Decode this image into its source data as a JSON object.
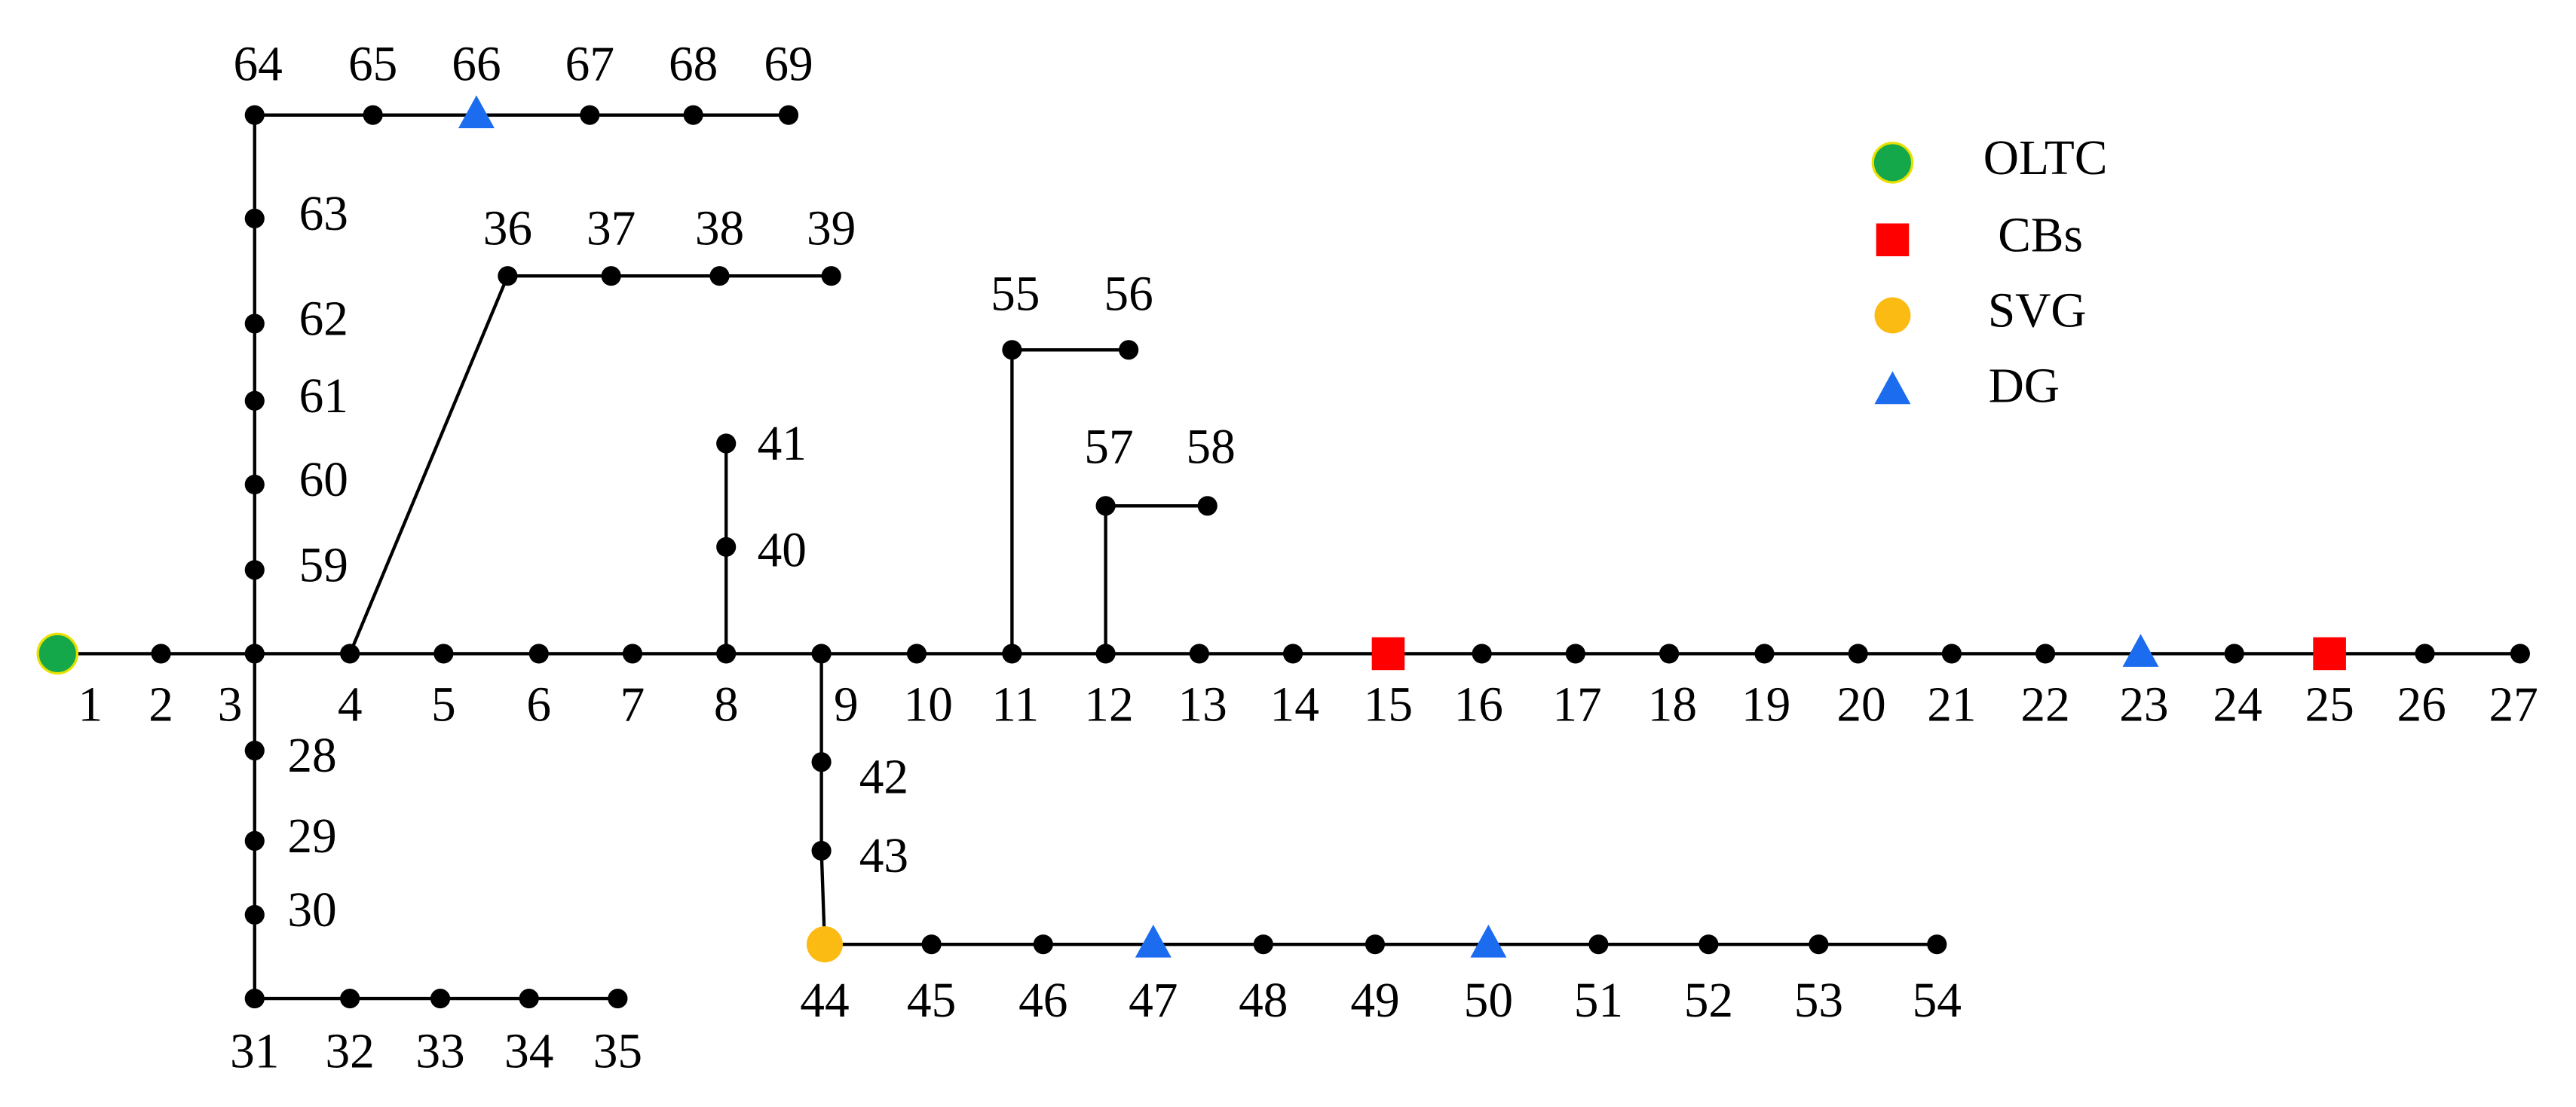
{
  "nodes": [
    {
      "label": "1"
    },
    {
      "label": "2"
    },
    {
      "label": "3"
    },
    {
      "label": "4"
    },
    {
      "label": "5"
    },
    {
      "label": "6"
    },
    {
      "label": "7"
    },
    {
      "label": "8"
    },
    {
      "label": "9"
    },
    {
      "label": "10"
    },
    {
      "label": "11"
    },
    {
      "label": "12"
    },
    {
      "label": "13"
    },
    {
      "label": "14"
    },
    {
      "label": "15"
    },
    {
      "label": "16"
    },
    {
      "label": "17"
    },
    {
      "label": "18"
    },
    {
      "label": "19"
    },
    {
      "label": "20"
    },
    {
      "label": "21"
    },
    {
      "label": "22"
    },
    {
      "label": "23"
    },
    {
      "label": "24"
    },
    {
      "label": "25"
    },
    {
      "label": "26"
    },
    {
      "label": "27"
    },
    {
      "label": "28"
    },
    {
      "label": "29"
    },
    {
      "label": "30"
    },
    {
      "label": "31"
    },
    {
      "label": "32"
    },
    {
      "label": "33"
    },
    {
      "label": "34"
    },
    {
      "label": "35"
    },
    {
      "label": "36"
    },
    {
      "label": "37"
    },
    {
      "label": "38"
    },
    {
      "label": "39"
    },
    {
      "label": "40"
    },
    {
      "label": "41"
    },
    {
      "label": "42"
    },
    {
      "label": "43"
    },
    {
      "label": "44"
    },
    {
      "label": "45"
    },
    {
      "label": "46"
    },
    {
      "label": "47"
    },
    {
      "label": "48"
    },
    {
      "label": "49"
    },
    {
      "label": "50"
    },
    {
      "label": "51"
    },
    {
      "label": "52"
    },
    {
      "label": "53"
    },
    {
      "label": "54"
    },
    {
      "label": "55"
    },
    {
      "label": "56"
    },
    {
      "label": "57"
    },
    {
      "label": "58"
    },
    {
      "label": "59"
    },
    {
      "label": "60"
    },
    {
      "label": "61"
    },
    {
      "label": "62"
    },
    {
      "label": "63"
    },
    {
      "label": "64"
    },
    {
      "label": "65"
    },
    {
      "label": "66"
    },
    {
      "label": "67"
    },
    {
      "label": "68"
    },
    {
      "label": "69"
    }
  ],
  "legend": [
    {
      "label": "OLTC"
    },
    {
      "label": "CBs"
    },
    {
      "label": "SVG"
    },
    {
      "label": "DG"
    }
  ]
}
